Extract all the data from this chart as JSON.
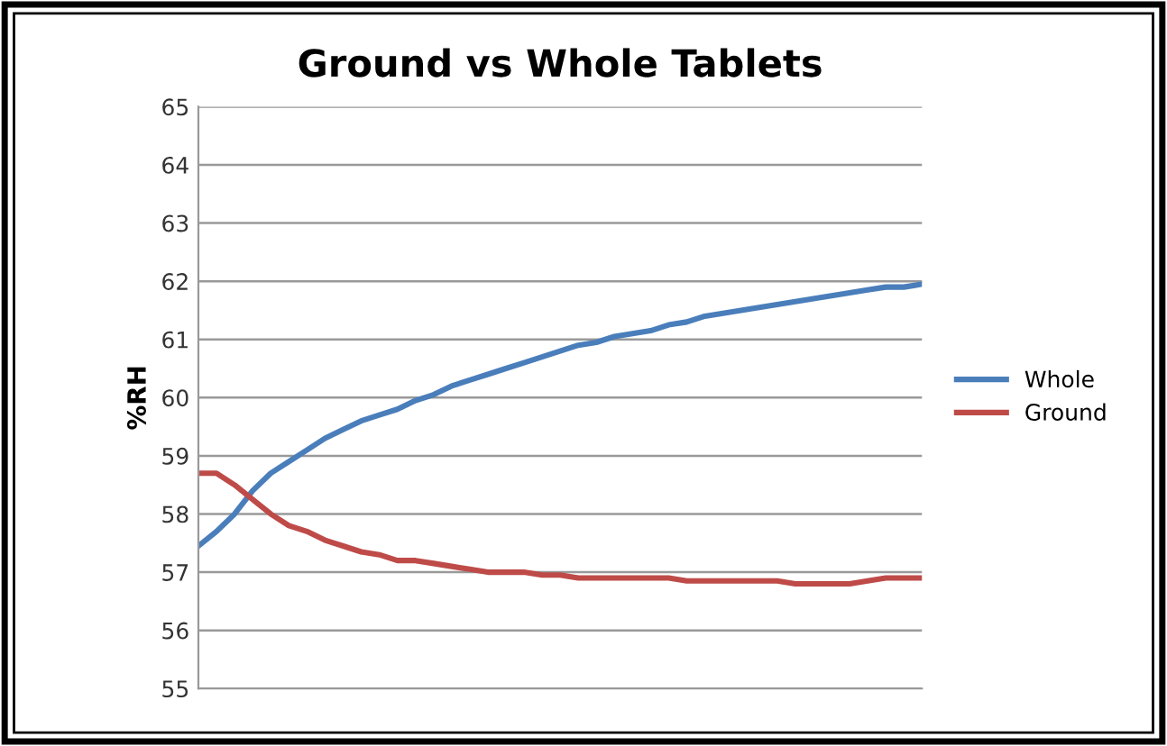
{
  "chart_data": {
    "type": "line",
    "title": "Ground vs Whole Tablets",
    "ylabel": "%RH",
    "categories": [
      null,
      null,
      null,
      null,
      null,
      null,
      null,
      null,
      null,
      null,
      null,
      null,
      null,
      null,
      null,
      null,
      null,
      null,
      null,
      null,
      null,
      null,
      null,
      null,
      null,
      null,
      null,
      null,
      null,
      null,
      null,
      null,
      null,
      null,
      null,
      null,
      null,
      null,
      null,
      null,
      null
    ],
    "series": [
      {
        "name": "Whole",
        "color": "#4a7ebb",
        "values": [
          57.45,
          57.7,
          58.0,
          58.4,
          58.7,
          58.9,
          59.1,
          59.3,
          59.45,
          59.6,
          59.7,
          59.8,
          59.95,
          60.05,
          60.2,
          60.3,
          60.4,
          60.5,
          60.6,
          60.7,
          60.8,
          60.9,
          60.95,
          61.05,
          61.1,
          61.15,
          61.25,
          61.3,
          61.4,
          61.45,
          61.5,
          61.55,
          61.6,
          61.65,
          61.7,
          61.75,
          61.8,
          61.85,
          61.9,
          61.9,
          61.95
        ]
      },
      {
        "name": "Ground",
        "color": "#be4b48",
        "values": [
          58.7,
          58.7,
          58.5,
          58.25,
          58.0,
          57.8,
          57.7,
          57.55,
          57.45,
          57.35,
          57.3,
          57.2,
          57.2,
          57.15,
          57.1,
          57.05,
          57.0,
          57.0,
          57.0,
          56.95,
          56.95,
          56.9,
          56.9,
          56.9,
          56.9,
          56.9,
          56.9,
          56.85,
          56.85,
          56.85,
          56.85,
          56.85,
          56.85,
          56.8,
          56.8,
          56.8,
          56.8,
          56.85,
          56.9,
          56.9,
          56.9
        ]
      }
    ],
    "ylim": [
      55,
      65
    ],
    "yticks": [
      55,
      56,
      57,
      58,
      59,
      60,
      61,
      62,
      63,
      64,
      65
    ],
    "grid": "y",
    "legend": "right",
    "tick_labels": "y",
    "marker": "none",
    "line_style": "solid"
  }
}
